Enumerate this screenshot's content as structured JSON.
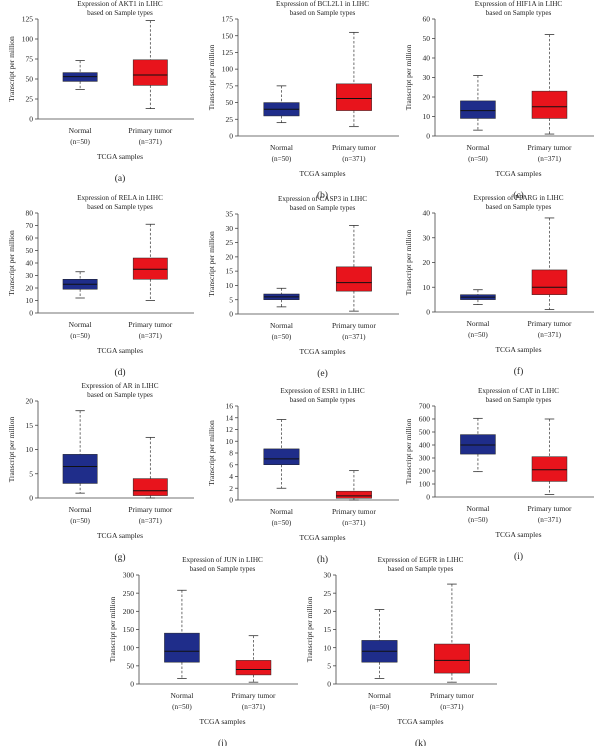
{
  "figure": {
    "x_categories": [
      "Normal",
      "Primary tumor"
    ],
    "x_counts": [
      "(n=50)",
      "(n=371)"
    ],
    "xlabel": "TCGA samples",
    "ylabel": "Transcript per million",
    "colors": {
      "normal": "#1f2d8a",
      "tumor": "#e8141c",
      "axis": "#444444"
    }
  },
  "chart_data": [
    {
      "type": "box",
      "panel": "(a)",
      "title_line1": "Expression of AKT1 in LIHC",
      "title_line2": "based on Sample types",
      "ylim": [
        0,
        125
      ],
      "yticks": [
        0,
        25,
        50,
        75,
        100,
        125
      ],
      "series": [
        {
          "name": "Normal",
          "n": 50,
          "whisker_low": 37,
          "q1": 47,
          "median": 53,
          "q3": 58,
          "whisker_high": 73
        },
        {
          "name": "Primary tumor",
          "n": 371,
          "whisker_low": 13,
          "q1": 42,
          "median": 55,
          "q3": 74,
          "whisker_high": 123
        }
      ]
    },
    {
      "type": "box",
      "panel": "(b)",
      "title_line1": "Expression of BCL2L1 in LIHC",
      "title_line2": "based on Sample types",
      "ylim": [
        0,
        175
      ],
      "yticks": [
        0,
        25,
        50,
        75,
        100,
        125,
        150,
        175
      ],
      "series": [
        {
          "name": "Normal",
          "n": 50,
          "whisker_low": 20,
          "q1": 30,
          "median": 40,
          "q3": 50,
          "whisker_high": 75
        },
        {
          "name": "Primary tumor",
          "n": 371,
          "whisker_low": 14,
          "q1": 38,
          "median": 56,
          "q3": 78,
          "whisker_high": 155
        }
      ]
    },
    {
      "type": "box",
      "panel": "(c)",
      "title_line1": "Expression of HIF1A in LIHC",
      "title_line2": "based on Sample types",
      "ylim": [
        0,
        60
      ],
      "yticks": [
        0,
        10,
        20,
        30,
        40,
        50,
        60
      ],
      "series": [
        {
          "name": "Normal",
          "n": 50,
          "whisker_low": 3,
          "q1": 9,
          "median": 13,
          "q3": 18,
          "whisker_high": 31
        },
        {
          "name": "Primary tumor",
          "n": 371,
          "whisker_low": 1,
          "q1": 9,
          "median": 15,
          "q3": 23,
          "whisker_high": 52
        }
      ]
    },
    {
      "type": "box",
      "panel": "(d)",
      "title_line1": "Expression of RELA in LIHC",
      "title_line2": "based on Sample types",
      "ylim": [
        0,
        80
      ],
      "yticks": [
        0,
        10,
        20,
        30,
        40,
        50,
        60,
        70,
        80
      ],
      "series": [
        {
          "name": "Normal",
          "n": 50,
          "whisker_low": 12,
          "q1": 19,
          "median": 23,
          "q3": 27,
          "whisker_high": 33
        },
        {
          "name": "Primary tumor",
          "n": 371,
          "whisker_low": 10,
          "q1": 27,
          "median": 35,
          "q3": 44,
          "whisker_high": 71
        }
      ]
    },
    {
      "type": "box",
      "panel": "(e)",
      "title_line1": "Expression of CASP3 in LIHC",
      "title_line2": "based on Sample types",
      "ylim": [
        0,
        35
      ],
      "yticks": [
        0,
        5,
        10,
        15,
        20,
        25,
        30,
        35
      ],
      "series": [
        {
          "name": "Normal",
          "n": 50,
          "whisker_low": 2.5,
          "q1": 5,
          "median": 6,
          "q3": 7,
          "whisker_high": 9
        },
        {
          "name": "Primary tumor",
          "n": 371,
          "whisker_low": 1,
          "q1": 8,
          "median": 11,
          "q3": 16.5,
          "whisker_high": 31
        }
      ]
    },
    {
      "type": "box",
      "panel": "(f)",
      "title_line1": "Expression of PPARG in LIHC",
      "title_line2": "based on Sample types",
      "ylim": [
        0,
        40
      ],
      "yticks": [
        0,
        10,
        20,
        30,
        40
      ],
      "series": [
        {
          "name": "Normal",
          "n": 50,
          "whisker_low": 3,
          "q1": 5,
          "median": 6,
          "q3": 7,
          "whisker_high": 9
        },
        {
          "name": "Primary tumor",
          "n": 371,
          "whisker_low": 1,
          "q1": 7,
          "median": 10,
          "q3": 17,
          "whisker_high": 38
        }
      ]
    },
    {
      "type": "box",
      "panel": "(g)",
      "title_line1": "Expression of AR in LIHC",
      "title_line2": "based on Sample types",
      "ylim": [
        0,
        20
      ],
      "yticks": [
        0,
        5,
        10,
        15,
        20
      ],
      "series": [
        {
          "name": "Normal",
          "n": 50,
          "whisker_low": 1,
          "q1": 3,
          "median": 6.5,
          "q3": 9,
          "whisker_high": 18
        },
        {
          "name": "Primary tumor",
          "n": 371,
          "whisker_low": 0,
          "q1": 0.5,
          "median": 1.5,
          "q3": 4,
          "whisker_high": 12.5
        }
      ]
    },
    {
      "type": "box",
      "panel": "(h)",
      "title_line1": "Expression of ESR1 in LIHC",
      "title_line2": "based on Sample types",
      "ylim": [
        0,
        16
      ],
      "yticks": [
        0,
        2,
        4,
        6,
        8,
        10,
        12,
        14,
        16
      ],
      "series": [
        {
          "name": "Normal",
          "n": 50,
          "whisker_low": 2,
          "q1": 6,
          "median": 7,
          "q3": 8.7,
          "whisker_high": 13.7
        },
        {
          "name": "Primary tumor",
          "n": 371,
          "whisker_low": 0,
          "q1": 0.3,
          "median": 0.7,
          "q3": 1.5,
          "whisker_high": 5
        }
      ]
    },
    {
      "type": "box",
      "panel": "(i)",
      "title_line1": "Expression of CAT in LIHC",
      "title_line2": "based on Sample types",
      "ylim": [
        0,
        700
      ],
      "yticks": [
        0,
        100,
        200,
        300,
        400,
        500,
        600,
        700
      ],
      "series": [
        {
          "name": "Normal",
          "n": 50,
          "whisker_low": 195,
          "q1": 330,
          "median": 400,
          "q3": 480,
          "whisker_high": 605
        },
        {
          "name": "Primary tumor",
          "n": 371,
          "whisker_low": 20,
          "q1": 120,
          "median": 210,
          "q3": 310,
          "whisker_high": 600
        }
      ]
    },
    {
      "type": "box",
      "panel": "(j)",
      "title_line1": "Expression of JUN in LIHC",
      "title_line2": "based on Sample types",
      "ylim": [
        0,
        300
      ],
      "yticks": [
        0,
        50,
        100,
        150,
        200,
        250,
        300
      ],
      "series": [
        {
          "name": "Normal",
          "n": 50,
          "whisker_low": 15,
          "q1": 60,
          "median": 90,
          "q3": 140,
          "whisker_high": 258
        },
        {
          "name": "Primary tumor",
          "n": 371,
          "whisker_low": 5,
          "q1": 25,
          "median": 40,
          "q3": 65,
          "whisker_high": 133
        }
      ]
    },
    {
      "type": "box",
      "panel": "(k)",
      "title_line1": "Expression of EGFR in LIHC",
      "title_line2": "based on Sample types",
      "ylim": [
        0,
        30
      ],
      "yticks": [
        0,
        5,
        10,
        15,
        20,
        25,
        30
      ],
      "series": [
        {
          "name": "Normal",
          "n": 50,
          "whisker_low": 1.5,
          "q1": 6,
          "median": 9,
          "q3": 12,
          "whisker_high": 20.5
        },
        {
          "name": "Primary tumor",
          "n": 371,
          "whisker_low": 0.5,
          "q1": 3,
          "median": 6.5,
          "q3": 11,
          "whisker_high": 27.5
        }
      ]
    }
  ]
}
